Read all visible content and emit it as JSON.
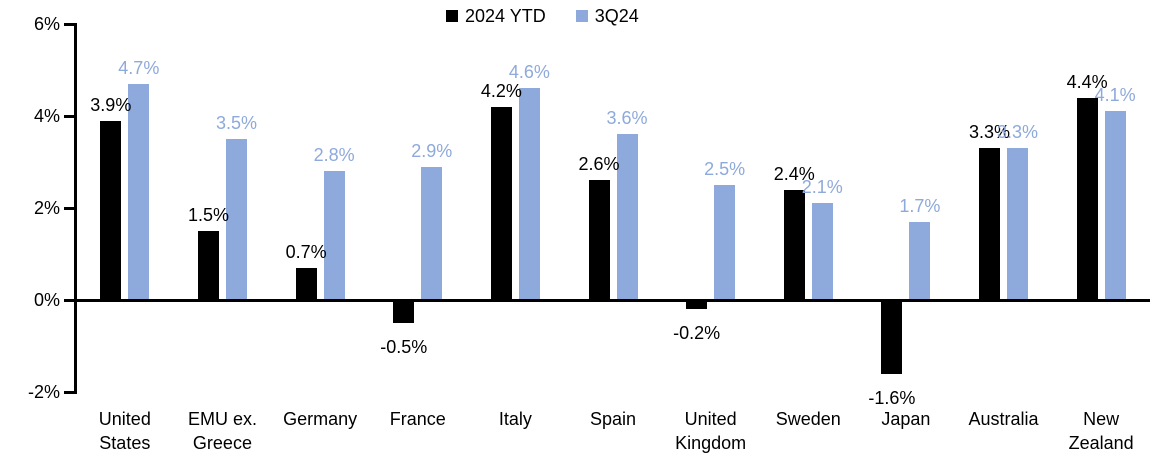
{
  "chart_data": {
    "type": "bar",
    "title": "",
    "categories": [
      "United\nStates",
      "EMU ex.\nGreece",
      "Germany",
      "France",
      "Italy",
      "Spain",
      "United\nKingdom",
      "Sweden",
      "Japan",
      "Australia",
      "New\nZealand"
    ],
    "series": [
      {
        "name": "2024 YTD",
        "color": "#000000",
        "label_color": "#000000",
        "values": [
          3.9,
          1.5,
          0.7,
          -0.5,
          4.2,
          2.6,
          -0.2,
          2.4,
          -1.6,
          3.3,
          4.4
        ]
      },
      {
        "name": "3Q24",
        "color": "#8EA9DB",
        "label_color": "#8EA9DB",
        "values": [
          4.7,
          3.5,
          2.8,
          2.9,
          4.6,
          3.6,
          2.5,
          2.1,
          1.7,
          3.3,
          4.1
        ]
      }
    ],
    "value_suffix": "%",
    "value_decimals": 1,
    "yticks": [
      {
        "label": "6%",
        "value": 6
      },
      {
        "label": "4%",
        "value": 4
      },
      {
        "label": "2%",
        "value": 2
      },
      {
        "label": "0%",
        "value": 0
      },
      {
        "label": "-2%",
        "value": -2
      }
    ],
    "ylim": [
      -2,
      6
    ],
    "grid": false,
    "legend_position": "top-center",
    "data_labels": "outside-end",
    "axis_color": "#000000",
    "background_color": "#FFFFFF"
  }
}
